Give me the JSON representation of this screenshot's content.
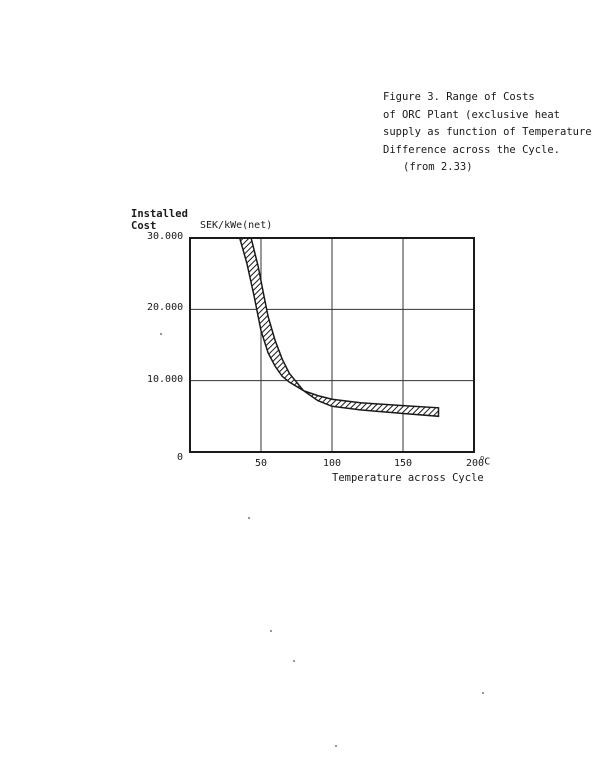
{
  "caption": {
    "lines": [
      "Figure  3.   Range of Costs",
      "of ORC Plant (exclusive heat",
      "supply as function of Temperature",
      "Difference across the Cycle.",
      "(from 2.33)"
    ]
  },
  "chart_data": {
    "type": "area",
    "ylabel": [
      "Installed",
      "Cost"
    ],
    "yunit": "SEK/kWe(net)",
    "xlabel": "Temperature across Cycle",
    "xunit_suffix": "°C",
    "xlim": [
      0,
      200
    ],
    "ylim": [
      0,
      30000
    ],
    "xticks": [
      {
        "value": 50,
        "label": "50"
      },
      {
        "value": 100,
        "label": "100"
      },
      {
        "value": 150,
        "label": "150"
      },
      {
        "value": 200,
        "label": "200"
      }
    ],
    "yticks": [
      {
        "value": 0,
        "label": "0"
      },
      {
        "value": 10000,
        "label": "10.000"
      },
      {
        "value": 20000,
        "label": "20.000"
      },
      {
        "value": 30000,
        "label": "30.000"
      }
    ],
    "grid": true,
    "band": {
      "upper": [
        [
          35,
          30000
        ],
        [
          40,
          26500
        ],
        [
          45,
          22000
        ],
        [
          50,
          17000
        ],
        [
          55,
          13900
        ],
        [
          60,
          12000
        ],
        [
          65,
          10600
        ],
        [
          70,
          9800
        ],
        [
          80,
          8600
        ],
        [
          90,
          7900
        ],
        [
          100,
          7400
        ],
        [
          120,
          6900
        ],
        [
          150,
          6500
        ],
        [
          175,
          6200
        ]
      ],
      "lower": [
        [
          43,
          30000
        ],
        [
          48,
          26000
        ],
        [
          52,
          22000
        ],
        [
          55,
          19000
        ],
        [
          60,
          15600
        ],
        [
          65,
          13000
        ],
        [
          70,
          11000
        ],
        [
          80,
          8600
        ],
        [
          90,
          7200
        ],
        [
          100,
          6400
        ],
        [
          120,
          5900
        ],
        [
          150,
          5400
        ],
        [
          175,
          5000
        ]
      ],
      "fill": "hatched"
    }
  }
}
